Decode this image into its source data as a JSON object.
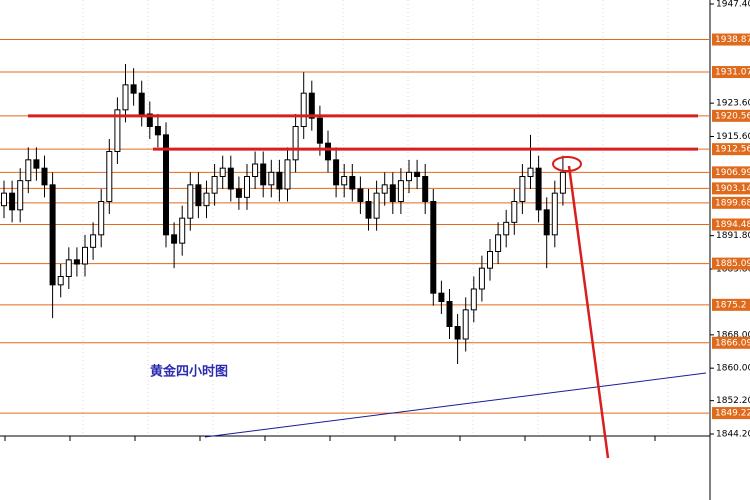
{
  "chart_data": {
    "type": "candlestick",
    "annotation": "黄金四小时图",
    "ylim": [
      1844.2,
      1947.4
    ],
    "yticks": [
      {
        "value": 1947.4,
        "label": "1947.40"
      },
      {
        "value": 1923.6,
        "label": "1923.60"
      },
      {
        "value": 1915.6,
        "label": "1915.60"
      },
      {
        "value": 1891.8,
        "label": "1891.80"
      },
      {
        "value": 1883.8,
        "label": "1883.80"
      },
      {
        "value": 1868.0,
        "label": "1868.00"
      },
      {
        "value": 1860.0,
        "label": "1860.00"
      },
      {
        "value": 1852.2,
        "label": "1852.20"
      },
      {
        "value": 1844.2,
        "label": "1844.20"
      }
    ],
    "levels": [
      1938.87,
      1931.07,
      1920.56,
      1912.56,
      1906.99,
      1903.14,
      1899.68,
      1894.48,
      1885.09,
      1875.2,
      1866.09,
      1849.22
    ],
    "level_color": "#e06a1c",
    "open": [
      1899,
      1902,
      1898,
      1905,
      1910,
      1908,
      1904,
      1880,
      1882,
      1886,
      1885,
      1889,
      1892,
      1900,
      1912,
      1922,
      1928,
      1926,
      1921,
      1918,
      1916,
      1892,
      1890,
      1896,
      1904,
      1899,
      1902,
      1906,
      1908,
      1903,
      1901,
      1906,
      1909,
      1904,
      1907,
      1903,
      1910,
      1918,
      1926,
      1920,
      1914,
      1910,
      1904,
      1906,
      1903,
      1900,
      1896,
      1902,
      1904,
      1900,
      1905,
      1907,
      1906,
      1900,
      1878,
      1876,
      1870,
      1867,
      1874,
      1879,
      1884,
      1888,
      1892,
      1895,
      1900,
      1906,
      1908,
      1898,
      1892,
      1902
    ],
    "high": [
      1905,
      1905,
      1908,
      1913,
      1913,
      1911,
      1907,
      1885,
      1889,
      1889,
      1892,
      1895,
      1903,
      1915,
      1925,
      1933,
      1932,
      1929,
      1924,
      1921,
      1919,
      1895,
      1899,
      1907,
      1907,
      1905,
      1909,
      1911,
      1911,
      1906,
      1909,
      1912,
      1912,
      1910,
      1910,
      1913,
      1921,
      1931,
      1929,
      1923,
      1917,
      1913,
      1909,
      1909,
      1906,
      1903,
      1905,
      1907,
      1907,
      1908,
      1910,
      1910,
      1909,
      1903,
      1881,
      1879,
      1873,
      1877,
      1882,
      1887,
      1891,
      1895,
      1898,
      1903,
      1909,
      1916,
      1911,
      1901,
      1905,
      1911
    ],
    "low": [
      1896,
      1895,
      1895,
      1902,
      1905,
      1901,
      1872,
      1877,
      1879,
      1882,
      1882,
      1886,
      1889,
      1897,
      1909,
      1919,
      1923,
      1918,
      1915,
      1913,
      1889,
      1884,
      1887,
      1893,
      1896,
      1896,
      1899,
      1903,
      1900,
      1898,
      1898,
      1903,
      1901,
      1901,
      1900,
      1900,
      1907,
      1915,
      1917,
      1911,
      1907,
      1901,
      1901,
      1900,
      1897,
      1893,
      1893,
      1899,
      1897,
      1897,
      1902,
      1903,
      1897,
      1875,
      1873,
      1867,
      1861,
      1864,
      1871,
      1876,
      1881,
      1885,
      1889,
      1892,
      1897,
      1903,
      1895,
      1884,
      1889,
      1899
    ],
    "close": [
      1902,
      1898,
      1905,
      1910,
      1908,
      1904,
      1880,
      1882,
      1886,
      1885,
      1889,
      1892,
      1900,
      1912,
      1922,
      1928,
      1926,
      1921,
      1918,
      1916,
      1892,
      1890,
      1896,
      1904,
      1899,
      1902,
      1906,
      1908,
      1903,
      1901,
      1906,
      1909,
      1904,
      1907,
      1903,
      1910,
      1918,
      1926,
      1920,
      1914,
      1910,
      1904,
      1906,
      1903,
      1900,
      1896,
      1902,
      1904,
      1900,
      1905,
      1907,
      1906,
      1900,
      1878,
      1876,
      1870,
      1867,
      1874,
      1879,
      1884,
      1888,
      1892,
      1895,
      1900,
      1906,
      1908,
      1898,
      1892,
      1902,
      1907
    ]
  }
}
